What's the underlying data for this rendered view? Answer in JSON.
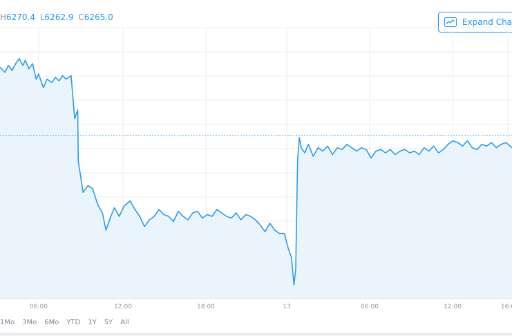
{
  "ohlc": {
    "h_label": "H",
    "h_value": "6270.4",
    "l_label": "L",
    "l_value": "6262.9",
    "c_label": "C",
    "c_value": "6265.0"
  },
  "expand_button": {
    "label": "Expand Chart",
    "icon": "line-chart-icon"
  },
  "range_selector": [
    "1Mo",
    "3Mo",
    "6Mo",
    "YTD",
    "1Y",
    "5Y",
    "All"
  ],
  "colors": {
    "line": "#2f9be8",
    "area": "#eaf4fd",
    "grid": "#eceef1",
    "ref_line": "#4aa3ea",
    "text": "#8f98a3",
    "accent": "#2196f3"
  },
  "chart_data": {
    "type": "area",
    "x_tick_labels": [
      "06:00",
      "12:00",
      "18:00",
      "13",
      "06:00",
      "12:00",
      "16:0"
    ],
    "grid": true,
    "reference_line": "previous close (dotted)",
    "series": [
      {
        "values": [
          [
            0.0,
            6269.7
          ],
          [
            0.4,
            6269.4
          ],
          [
            0.7,
            6269.8
          ],
          [
            1.0,
            6269.5
          ],
          [
            1.3,
            6269.9
          ],
          [
            1.6,
            6270.2
          ],
          [
            1.9,
            6269.8
          ],
          [
            2.1,
            6270.1
          ],
          [
            2.4,
            6269.6
          ],
          [
            2.7,
            6269.9
          ],
          [
            3.0,
            6269.0
          ],
          [
            3.2,
            6269.3
          ],
          [
            3.6,
            6268.5
          ],
          [
            3.9,
            6269.0
          ],
          [
            4.3,
            6268.8
          ],
          [
            4.6,
            6269.1
          ],
          [
            4.9,
            6268.9
          ],
          [
            5.2,
            6269.2
          ],
          [
            5.5,
            6269.0
          ],
          [
            5.9,
            6269.2
          ],
          [
            6.2,
            6266.7
          ],
          [
            6.45,
            6267.2
          ],
          [
            6.5,
            6264.2
          ],
          [
            6.9,
            6262.4
          ],
          [
            7.3,
            6262.8
          ],
          [
            7.7,
            6262.6
          ],
          [
            8.1,
            6261.7
          ],
          [
            8.5,
            6261.2
          ],
          [
            8.8,
            6260.2
          ],
          [
            9.2,
            6261.0
          ],
          [
            9.5,
            6261.5
          ],
          [
            9.9,
            6261.0
          ],
          [
            10.3,
            6261.6
          ],
          [
            10.8,
            6261.9
          ],
          [
            11.2,
            6261.4
          ],
          [
            11.6,
            6261.0
          ],
          [
            12.0,
            6260.4
          ],
          [
            12.4,
            6260.8
          ],
          [
            12.8,
            6261.0
          ],
          [
            13.2,
            6261.4
          ],
          [
            13.6,
            6261.1
          ],
          [
            14.0,
            6261.0
          ],
          [
            14.4,
            6260.7
          ],
          [
            14.8,
            6261.3
          ],
          [
            15.2,
            6261.0
          ],
          [
            15.6,
            6260.8
          ],
          [
            16.0,
            6261.2
          ],
          [
            16.4,
            6261.3
          ],
          [
            16.8,
            6260.9
          ],
          [
            17.2,
            6261.1
          ],
          [
            17.6,
            6261.0
          ],
          [
            18.0,
            6261.4
          ],
          [
            18.4,
            6261.2
          ],
          [
            18.8,
            6261.0
          ],
          [
            19.2,
            6260.9
          ],
          [
            19.6,
            6261.2
          ],
          [
            20.0,
            6260.8
          ],
          [
            20.4,
            6261.1
          ],
          [
            20.8,
            6261.0
          ],
          [
            21.2,
            6260.8
          ],
          [
            21.6,
            6260.5
          ],
          [
            22.0,
            6260.1
          ],
          [
            22.4,
            6260.6
          ],
          [
            22.8,
            6260.2
          ],
          [
            23.2,
            6260.0
          ],
          [
            23.6,
            6260.0
          ],
          [
            23.9,
            6259.2
          ],
          [
            24.2,
            6258.6
          ],
          [
            24.4,
            6257.0
          ],
          [
            24.55,
            6257.9
          ],
          [
            24.7,
            6264.3
          ],
          [
            24.85,
            6265.6
          ],
          [
            25.0,
            6265.0
          ],
          [
            25.3,
            6264.7
          ],
          [
            25.6,
            6265.2
          ],
          [
            26.0,
            6264.5
          ],
          [
            26.4,
            6265.0
          ],
          [
            26.8,
            6264.8
          ],
          [
            27.2,
            6265.1
          ],
          [
            27.6,
            6264.6
          ],
          [
            28.0,
            6265.0
          ],
          [
            28.4,
            6264.9
          ],
          [
            28.8,
            6265.2
          ],
          [
            29.2,
            6265.0
          ],
          [
            29.6,
            6264.8
          ],
          [
            30.0,
            6265.0
          ],
          [
            30.4,
            6264.9
          ],
          [
            30.8,
            6264.4
          ],
          [
            31.2,
            6264.8
          ],
          [
            31.6,
            6264.9
          ],
          [
            32.0,
            6264.7
          ],
          [
            32.4,
            6264.9
          ],
          [
            32.8,
            6264.6
          ],
          [
            33.2,
            6264.8
          ],
          [
            33.6,
            6264.9
          ],
          [
            34.0,
            6264.7
          ],
          [
            34.4,
            6264.8
          ],
          [
            34.8,
            6264.6
          ],
          [
            35.2,
            6265.0
          ],
          [
            35.6,
            6264.8
          ],
          [
            36.0,
            6265.1
          ],
          [
            36.4,
            6264.7
          ],
          [
            36.8,
            6264.9
          ],
          [
            37.2,
            6265.2
          ],
          [
            37.6,
            6265.4
          ],
          [
            38.0,
            6265.3
          ],
          [
            38.4,
            6265.1
          ],
          [
            38.8,
            6265.4
          ],
          [
            39.2,
            6265.0
          ],
          [
            39.6,
            6264.9
          ],
          [
            40.0,
            6265.2
          ],
          [
            40.4,
            6265.1
          ],
          [
            40.8,
            6265.3
          ],
          [
            41.2,
            6265.0
          ],
          [
            41.6,
            6265.2
          ],
          [
            42.0,
            6265.3
          ],
          [
            42.5,
            6265.0
          ]
        ]
      }
    ]
  }
}
